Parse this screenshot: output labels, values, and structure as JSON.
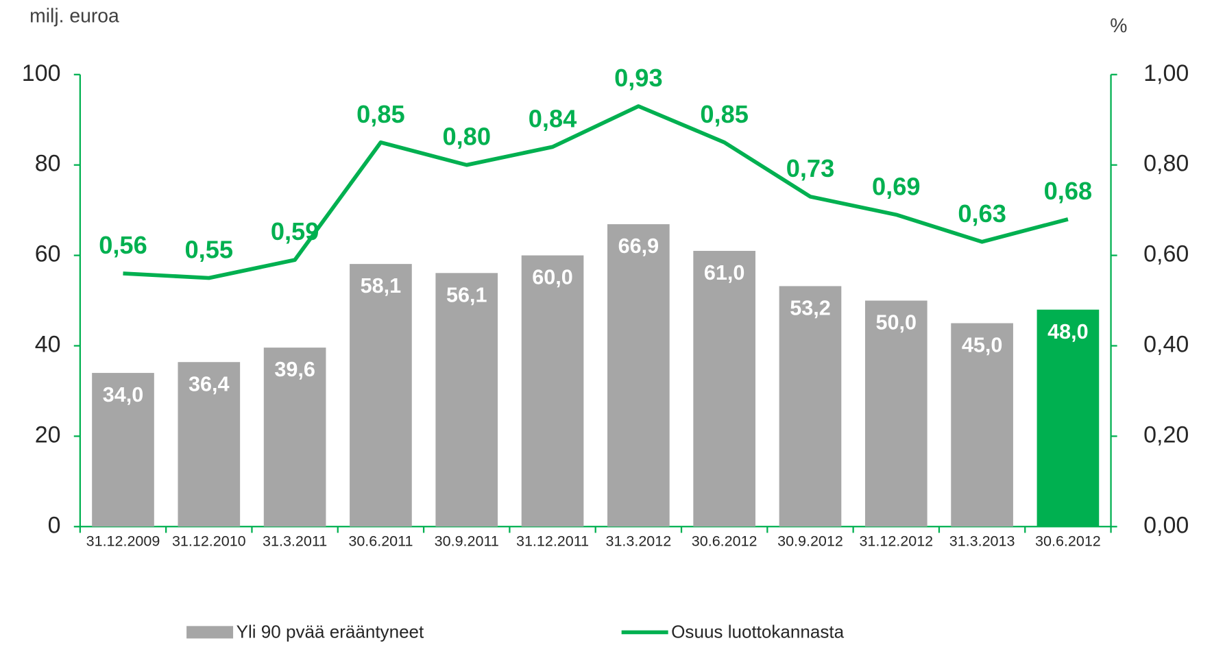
{
  "chart_data": {
    "type": "bar-line",
    "ylabel": "milj. euroa",
    "y2label": "%",
    "categories": [
      "31.12.2009",
      "31.12.2010",
      "31.3.2011",
      "30.6.2011",
      "30.9.2011",
      "31.12.2011",
      "31.3.2012",
      "30.6.2012",
      "30.9.2012",
      "31.12.2012",
      "31.3.2013",
      "30.6.2012"
    ],
    "series": [
      {
        "name": "Yli 90 pvää erääntyneet",
        "type": "bar",
        "color": "#a6a6a6",
        "colors": [
          "#a6a6a6",
          "#a6a6a6",
          "#a6a6a6",
          "#a6a6a6",
          "#a6a6a6",
          "#a6a6a6",
          "#a6a6a6",
          "#a6a6a6",
          "#a6a6a6",
          "#a6a6a6",
          "#a6a6a6",
          "#00b050"
        ],
        "values": [
          34.0,
          36.4,
          39.6,
          58.1,
          56.1,
          60.0,
          66.9,
          61.0,
          53.2,
          50.0,
          45.0,
          48.0
        ],
        "value_labels": [
          "34,0",
          "36,4",
          "39,6",
          "58,1",
          "56,1",
          "60,0",
          "66,9",
          "61,0",
          "53,2",
          "50,0",
          "45,0",
          "48,0"
        ]
      },
      {
        "name": "Osuus luottokannasta",
        "type": "line",
        "axis": "y2",
        "color": "#00b050",
        "values": [
          0.56,
          0.55,
          0.59,
          0.85,
          0.8,
          0.84,
          0.93,
          0.85,
          0.73,
          0.69,
          0.63,
          0.68
        ],
        "value_labels": [
          "0,56",
          "0,55",
          "0,59",
          "0,85",
          "0,80",
          "0,84",
          "0,93",
          "0,85",
          "0,73",
          "0,69",
          "0,63",
          "0,68"
        ]
      }
    ],
    "ylim": [
      0,
      100
    ],
    "yticks": [
      0,
      20,
      40,
      60,
      80,
      100
    ],
    "y2lim": [
      0,
      1
    ],
    "y2ticks": [
      {
        "value": 0,
        "label": "0,00"
      },
      {
        "value": 0.2,
        "label": "0,20"
      },
      {
        "value": 0.4,
        "label": "0,40"
      },
      {
        "value": 0.6,
        "label": "0,60"
      },
      {
        "value": 0.8,
        "label": "0,80"
      },
      {
        "value": 1,
        "label": "1,00"
      }
    ],
    "axis_color": "#00b050"
  }
}
